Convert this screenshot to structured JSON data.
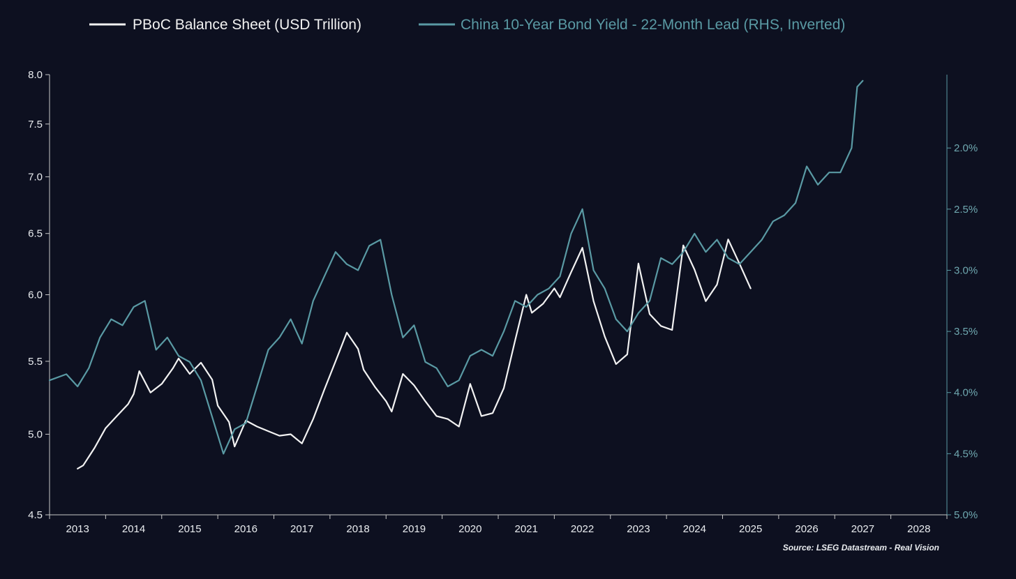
{
  "chart_data": {
    "type": "line",
    "title": "",
    "xlabel": "",
    "ylabel": "",
    "xlim": [
      2012.5,
      2028.5
    ],
    "ylim_left": [
      4.5,
      8.0
    ],
    "ylim_right_inverted": [
      1.4,
      5.0
    ],
    "left_axis_scale": "log",
    "grid": false,
    "legend_position": "top",
    "background_color": "#0d1020",
    "x_ticks": [
      "2013",
      "2014",
      "2015",
      "2016",
      "2017",
      "2018",
      "2019",
      "2020",
      "2021",
      "2022",
      "2023",
      "2024",
      "2025",
      "2026",
      "2027",
      "2028"
    ],
    "y_left_ticks": [
      "4.5",
      "5.0",
      "5.5",
      "6.0",
      "6.5",
      "7.0",
      "7.5",
      "8.0"
    ],
    "y_left_values": [
      4.5,
      5.0,
      5.5,
      6.0,
      6.5,
      7.0,
      7.5,
      8.0
    ],
    "y_right_ticks": [
      "2.0%",
      "2.5%",
      "3.0%",
      "3.5%",
      "4.0%",
      "4.5%",
      "5.0%"
    ],
    "y_right_values": [
      2.0,
      2.5,
      3.0,
      3.5,
      4.0,
      4.5,
      5.0
    ],
    "source": "Source: LSEG Datastream - Real Vision",
    "series": [
      {
        "name": "PBoC Balance Sheet (USD Trillion)",
        "axis": "left",
        "color": "#f2f2f2",
        "x": [
          2013.0,
          2013.1,
          2013.3,
          2013.5,
          2013.7,
          2013.9,
          2014.0,
          2014.1,
          2014.3,
          2014.5,
          2014.7,
          2014.8,
          2015.0,
          2015.2,
          2015.4,
          2015.5,
          2015.7,
          2015.8,
          2016.0,
          2016.2,
          2016.4,
          2016.6,
          2016.8,
          2017.0,
          2017.2,
          2017.4,
          2017.6,
          2017.8,
          2018.0,
          2018.1,
          2018.3,
          2018.5,
          2018.6,
          2018.8,
          2019.0,
          2019.2,
          2019.4,
          2019.6,
          2019.8,
          2020.0,
          2020.2,
          2020.4,
          2020.6,
          2020.8,
          2021.0,
          2021.1,
          2021.3,
          2021.5,
          2021.6,
          2021.8,
          2022.0,
          2022.2,
          2022.4,
          2022.6,
          2022.8,
          2023.0,
          2023.2,
          2023.4,
          2023.6,
          2023.8,
          2024.0,
          2024.2,
          2024.4,
          2024.6,
          2024.8,
          2025.0
        ],
        "values": [
          4.78,
          4.8,
          4.91,
          5.04,
          5.12,
          5.2,
          5.27,
          5.43,
          5.28,
          5.34,
          5.45,
          5.52,
          5.41,
          5.49,
          5.37,
          5.19,
          5.08,
          4.92,
          5.09,
          5.05,
          5.02,
          4.99,
          5.0,
          4.94,
          5.1,
          5.3,
          5.5,
          5.71,
          5.59,
          5.44,
          5.32,
          5.22,
          5.15,
          5.41,
          5.33,
          5.22,
          5.12,
          5.1,
          5.05,
          5.34,
          5.12,
          5.14,
          5.31,
          5.65,
          6.0,
          5.86,
          5.93,
          6.05,
          5.98,
          6.18,
          6.38,
          5.95,
          5.68,
          5.48,
          5.55,
          6.25,
          5.85,
          5.76,
          5.73,
          6.4,
          6.2,
          5.95,
          6.08,
          6.45,
          6.25,
          6.05
        ]
      },
      {
        "name": "China 10-Year Bond Yield - 22-Month Lead (RHS, Inverted)",
        "axis": "right",
        "color": "#5a9aa4",
        "x": [
          2012.5,
          2012.8,
          2013.0,
          2013.2,
          2013.4,
          2013.6,
          2013.8,
          2014.0,
          2014.2,
          2014.4,
          2014.6,
          2014.8,
          2015.0,
          2015.2,
          2015.4,
          2015.6,
          2015.8,
          2016.0,
          2016.2,
          2016.4,
          2016.6,
          2016.8,
          2017.0,
          2017.2,
          2017.4,
          2017.6,
          2017.8,
          2018.0,
          2018.2,
          2018.4,
          2018.6,
          2018.8,
          2019.0,
          2019.2,
          2019.4,
          2019.6,
          2019.8,
          2020.0,
          2020.2,
          2020.4,
          2020.6,
          2020.8,
          2021.0,
          2021.2,
          2021.4,
          2021.6,
          2021.8,
          2022.0,
          2022.2,
          2022.4,
          2022.6,
          2022.8,
          2023.0,
          2023.2,
          2023.4,
          2023.6,
          2023.8,
          2024.0,
          2024.2,
          2024.4,
          2024.6,
          2024.8,
          2025.0,
          2025.2,
          2025.4,
          2025.6,
          2025.8,
          2026.0,
          2026.2,
          2026.4,
          2026.6,
          2026.8,
          2026.9,
          2027.0
        ],
        "values": [
          3.9,
          3.85,
          3.95,
          3.8,
          3.55,
          3.4,
          3.45,
          3.3,
          3.25,
          3.65,
          3.55,
          3.7,
          3.75,
          3.9,
          4.2,
          4.5,
          4.3,
          4.25,
          3.95,
          3.65,
          3.55,
          3.4,
          3.6,
          3.25,
          3.05,
          2.85,
          2.95,
          3.0,
          2.8,
          2.75,
          3.2,
          3.55,
          3.45,
          3.75,
          3.8,
          3.95,
          3.9,
          3.7,
          3.65,
          3.7,
          3.5,
          3.25,
          3.3,
          3.2,
          3.15,
          3.05,
          2.7,
          2.5,
          3.0,
          3.15,
          3.4,
          3.5,
          3.35,
          3.25,
          2.9,
          2.95,
          2.85,
          2.7,
          2.85,
          2.75,
          2.9,
          2.95,
          2.85,
          2.75,
          2.6,
          2.55,
          2.45,
          2.15,
          2.3,
          2.2,
          2.2,
          2.0,
          1.5,
          1.45
        ]
      }
    ]
  }
}
